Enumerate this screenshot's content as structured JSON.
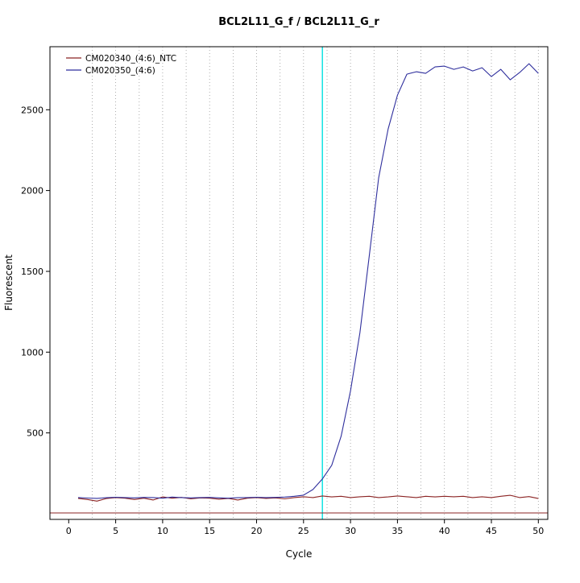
{
  "title": "BCL2L11_G_f / BCL2L11_G_r",
  "chart_data": {
    "type": "line",
    "title": "BCL2L11_G_f / BCL2L11_G_r",
    "xlabel": "Cycle",
    "ylabel": "Fluorescent",
    "xlim": [
      -2,
      51
    ],
    "ylim": [
      -35,
      2890
    ],
    "x_ticks": [
      0,
      5,
      10,
      15,
      20,
      25,
      30,
      35,
      40,
      45,
      50
    ],
    "y_ticks": [
      500,
      1000,
      1500,
      2000,
      2500
    ],
    "grid": "vertical-dotted",
    "grid_x_step": 2.5,
    "legend_position": "top-left",
    "threshold_cycle": 27,
    "baseline_value": 5,
    "colors": {
      "ntc": "#8b2323",
      "sample": "#2f2f9d",
      "threshold": "#00e0e0",
      "baseline": "#8b2323",
      "grid": "#9a9a9a",
      "box": "#000000"
    },
    "x": [
      1,
      2,
      3,
      4,
      5,
      6,
      7,
      8,
      9,
      10,
      11,
      12,
      13,
      14,
      15,
      16,
      17,
      18,
      19,
      20,
      21,
      22,
      23,
      24,
      25,
      26,
      27,
      28,
      29,
      30,
      31,
      32,
      33,
      34,
      35,
      36,
      37,
      38,
      39,
      40,
      41,
      42,
      43,
      44,
      45,
      46,
      47,
      48,
      49,
      50
    ],
    "series": [
      {
        "name": "CM020340_(4:6)_NTC",
        "color_key": "ntc",
        "values": [
          95,
          88,
          78,
          94,
          100,
          96,
          88,
          96,
          85,
          104,
          96,
          101,
          92,
          98,
          96,
          90,
          95,
          85,
          96,
          100,
          95,
          98,
          92,
          100,
          105,
          100,
          110,
          104,
          108,
          100,
          105,
          108,
          100,
          104,
          110,
          105,
          100,
          108,
          104,
          108,
          105,
          108,
          100,
          105,
          100,
          108,
          114,
          100,
          106,
          94
        ]
      },
      {
        "name": "CM020350_(4:6)",
        "color_key": "sample",
        "values": [
          100,
          97,
          95,
          99,
          102,
          100,
          98,
          101,
          100,
          96,
          103,
          100,
          98,
          100,
          101,
          98,
          96,
          99,
          100,
          102,
          100,
          101,
          103,
          108,
          115,
          150,
          215,
          300,
          480,
          760,
          1120,
          1600,
          2080,
          2380,
          2590,
          2720,
          2735,
          2725,
          2765,
          2770,
          2750,
          2765,
          2740,
          2760,
          2705,
          2750,
          2685,
          2730,
          2785,
          2725
        ]
      }
    ]
  }
}
